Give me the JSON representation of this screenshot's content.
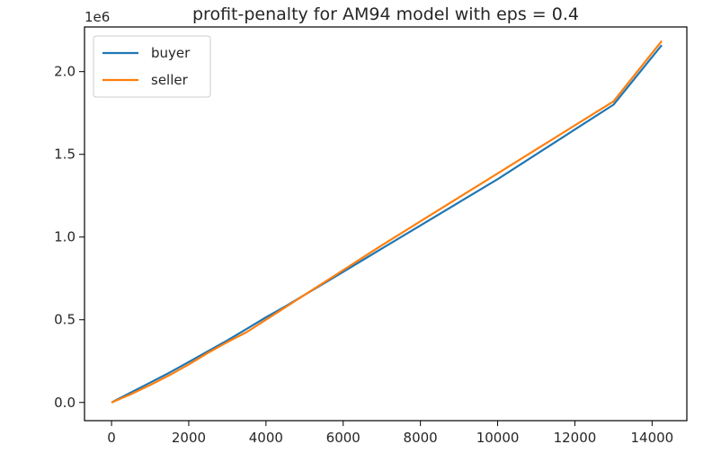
{
  "chart_data": {
    "type": "line",
    "title": "profit-penalty for AM94 model with eps = 0.4",
    "xlabel": "",
    "ylabel": "",
    "y_offset_label": "1e6",
    "xlim": [
      -700,
      14900
    ],
    "ylim": [
      -0.11,
      2.27
    ],
    "x_ticks": [
      0,
      2000,
      4000,
      6000,
      8000,
      10000,
      12000,
      14000
    ],
    "x_tick_labels": [
      "0",
      "2000",
      "4000",
      "6000",
      "8000",
      "10000",
      "12000",
      "14000"
    ],
    "y_ticks": [
      0.0,
      0.5,
      1.0,
      1.5,
      2.0
    ],
    "y_tick_labels": [
      "0.0",
      "0.5",
      "1.0",
      "1.5",
      "2.0"
    ],
    "grid": false,
    "legend_position": "upper-left",
    "series": [
      {
        "name": "buyer",
        "color": "#1f77b4",
        "x": [
          0,
          500,
          1000,
          1500,
          2000,
          2500,
          3000,
          3500,
          4000,
          4500,
          5000,
          5500,
          6000,
          6500,
          7000,
          8000,
          9000,
          10000,
          11000,
          12000,
          13000,
          14250
        ],
        "y": [
          0.0,
          0.06,
          0.12,
          0.18,
          0.245,
          0.31,
          0.375,
          0.445,
          0.515,
          0.58,
          0.65,
          0.72,
          0.79,
          0.86,
          0.93,
          1.07,
          1.21,
          1.35,
          1.5,
          1.65,
          1.8,
          2.16
        ]
      },
      {
        "name": "seller",
        "color": "#ff7f0e",
        "x": [
          0,
          500,
          1000,
          1500,
          2000,
          2500,
          3000,
          3500,
          4000,
          4500,
          5000,
          5500,
          6000,
          6500,
          7000,
          8000,
          9000,
          10000,
          11000,
          12000,
          13000,
          14250
        ],
        "y": [
          0.0,
          0.05,
          0.105,
          0.165,
          0.23,
          0.3,
          0.365,
          0.425,
          0.5,
          0.575,
          0.65,
          0.725,
          0.8,
          0.875,
          0.95,
          1.095,
          1.24,
          1.385,
          1.53,
          1.675,
          1.82,
          2.185
        ]
      }
    ]
  }
}
